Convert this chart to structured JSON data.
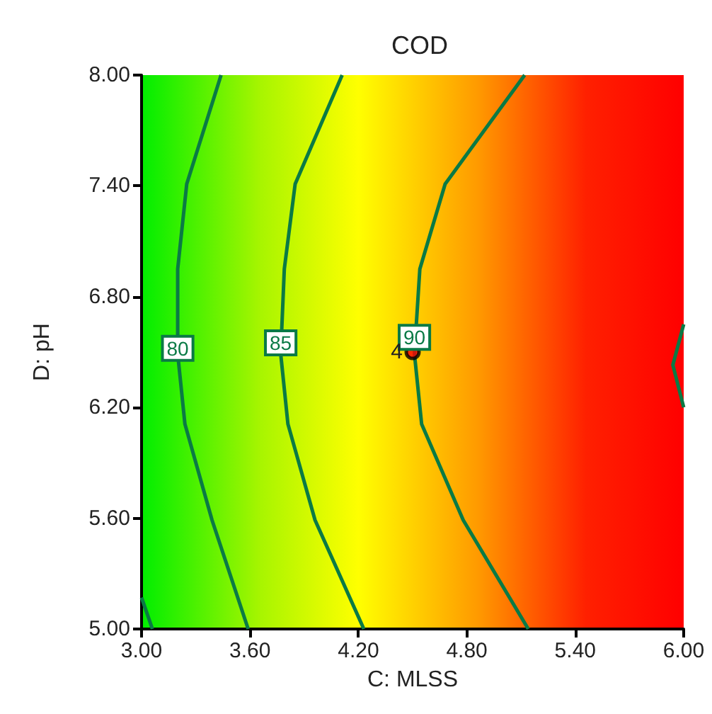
{
  "chart_data": {
    "type": "line",
    "title": "COD",
    "xlabel": "C: MLSS",
    "ylabel": "D: pH",
    "marker": "none",
    "xlim": [
      3,
      6
    ],
    "ylim": [
      5,
      8
    ],
    "xticks": [
      {
        "value": 3,
        "label": "3.00"
      },
      {
        "value": 3.6,
        "label": "3.60"
      },
      {
        "value": 4.2,
        "label": "4.20"
      },
      {
        "value": 4.8,
        "label": "4.80"
      },
      {
        "value": 5.4,
        "label": "5.40"
      },
      {
        "value": 6,
        "label": "6.00"
      }
    ],
    "yticks": [
      {
        "value": 5,
        "label": "5.00"
      },
      {
        "value": 5.6,
        "label": "5.60"
      },
      {
        "value": 6.2,
        "label": "6.20"
      },
      {
        "value": 6.8,
        "label": "6.80"
      },
      {
        "value": 7.4,
        "label": "7.40"
      },
      {
        "value": 8,
        "label": "8.00"
      }
    ],
    "series": [
      {
        "color": "#0a7a45",
        "x": [
          3.0,
          3.06
        ],
        "values": [
          5.17,
          5.0
        ]
      },
      {
        "color": "#0a7a45",
        "x": [
          3.44,
          3.25,
          3.2,
          3.2,
          3.24,
          3.39,
          3.59
        ],
        "values": [
          8.0,
          7.41,
          6.95,
          6.49,
          6.11,
          5.59,
          5.0
        ]
      },
      {
        "color": "#0a7a45",
        "x": [
          4.11,
          3.85,
          3.79,
          3.77,
          3.81,
          3.96,
          4.23
        ],
        "values": [
          8.0,
          7.41,
          6.95,
          6.49,
          6.11,
          5.59,
          5.0
        ]
      },
      {
        "color": "#0a7a45",
        "x": [
          5.12,
          4.68,
          4.54,
          4.51,
          4.55,
          4.78,
          5.14
        ],
        "values": [
          8.0,
          7.41,
          6.95,
          6.49,
          6.11,
          5.59,
          5.0
        ]
      },
      {
        "color": "#0a7a45",
        "x": [
          6.0,
          5.94,
          6.0
        ],
        "values": [
          6.65,
          6.43,
          6.2
        ]
      },
      {
        "type": "scatter",
        "marker": "circle",
        "color": "#ff0000",
        "x": [
          4.5
        ],
        "values": [
          6.5
        ]
      }
    ],
    "annotations": [
      {
        "text": "80",
        "x": 3.2,
        "y": 6.52
      },
      {
        "text": "85",
        "x": 3.77,
        "y": 6.55
      },
      {
        "text": "90",
        "x": 4.51,
        "y": 6.58
      },
      {
        "text": "4",
        "x": 4.5,
        "y": 6.5
      }
    ]
  }
}
